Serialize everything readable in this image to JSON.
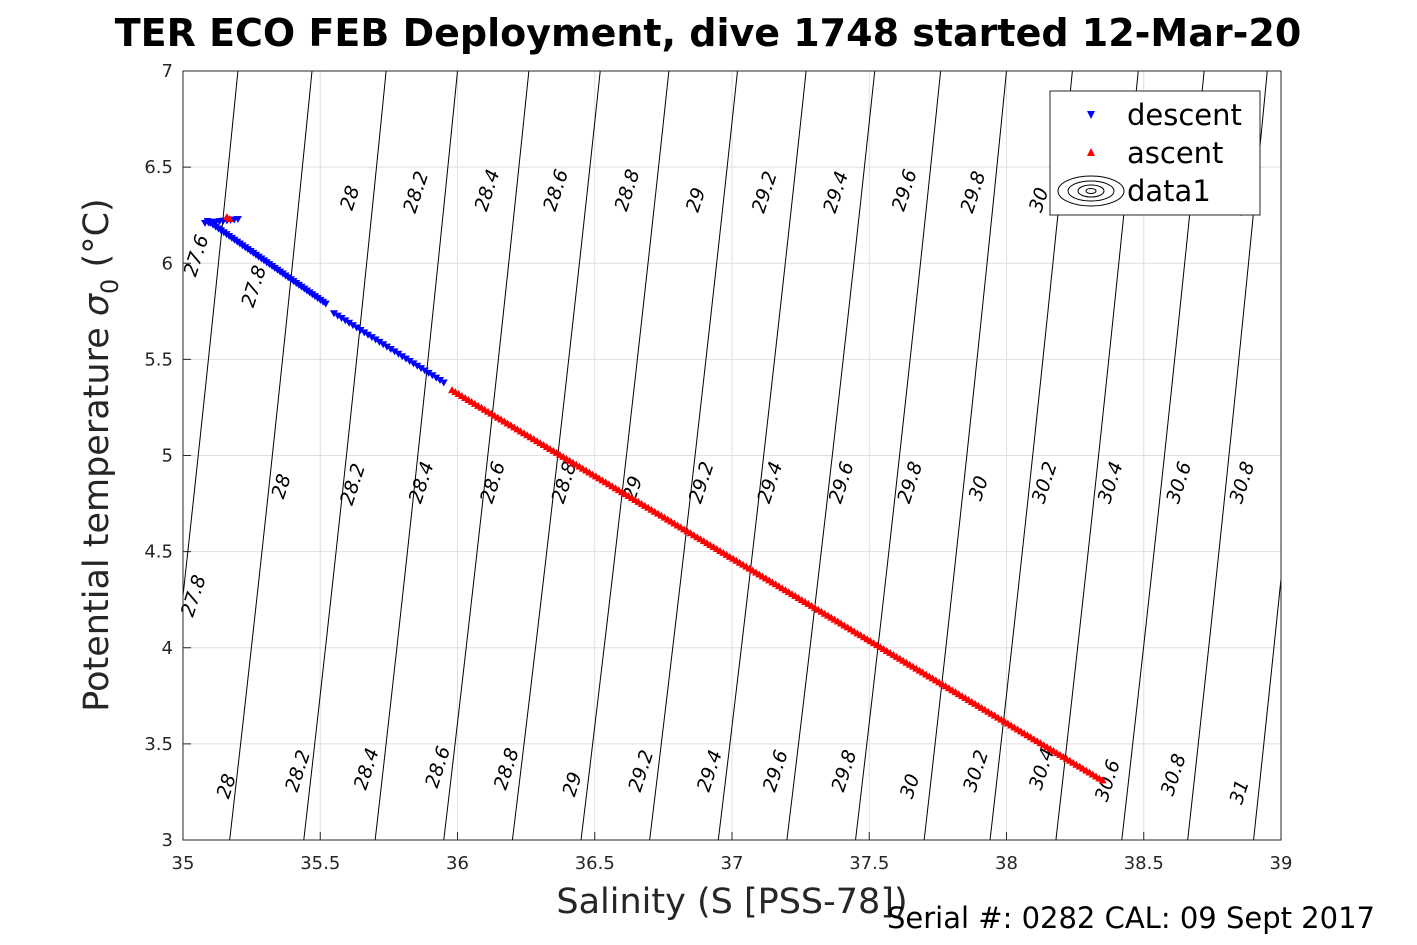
{
  "chart_data": {
    "type": "scatter",
    "title": "TER ECO FEB Deployment, dive 1748 started 12-Mar-20",
    "xlabel": "Salinity (S [PSS-78])",
    "ylabel_main": "Potential temperature ",
    "ylabel_sigma": "σ",
    "ylabel_sub": "0",
    "ylabel_unit": " (°C)",
    "footer": "Serial #: 0282  CAL: 09 Sept 2017",
    "xlim": [
      35,
      39
    ],
    "ylim": [
      3,
      7
    ],
    "x_ticks": [
      "35",
      "35.5",
      "36",
      "36.5",
      "37",
      "37.5",
      "38",
      "38.5",
      "39"
    ],
    "y_ticks": [
      "3",
      "3.5",
      "4",
      "4.5",
      "5",
      "5.5",
      "6",
      "6.5",
      "7"
    ],
    "grid": true,
    "legend": {
      "position": "top-right",
      "entries": [
        "descent",
        "ascent",
        "data1"
      ]
    },
    "contour_lines": [
      {
        "x_at_ymax": 35.2,
        "x_at_ymin": 34.9,
        "label": "27.6"
      },
      {
        "x_at_ymax": 35.47,
        "x_at_ymin": 35.17,
        "label": "27.8"
      },
      {
        "x_at_ymax": 35.74,
        "x_at_ymin": 35.44,
        "label": "28"
      },
      {
        "x_at_ymax": 36.0,
        "x_at_ymin": 35.7,
        "label": "28.2"
      },
      {
        "x_at_ymax": 36.26,
        "x_at_ymin": 35.95,
        "label": "28.4"
      },
      {
        "x_at_ymax": 36.52,
        "x_at_ymin": 36.2,
        "label": "28.6"
      },
      {
        "x_at_ymax": 36.77,
        "x_at_ymin": 36.45,
        "label": "28.8"
      },
      {
        "x_at_ymax": 37.02,
        "x_at_ymin": 36.7,
        "label": "29"
      },
      {
        "x_at_ymax": 37.27,
        "x_at_ymin": 36.95,
        "label": "29.2"
      },
      {
        "x_at_ymax": 37.52,
        "x_at_ymin": 37.2,
        "label": "29.4"
      },
      {
        "x_at_ymax": 37.76,
        "x_at_ymin": 37.45,
        "label": "29.6"
      },
      {
        "x_at_ymax": 38.0,
        "x_at_ymin": 37.7,
        "label": "29.8"
      },
      {
        "x_at_ymax": 38.24,
        "x_at_ymin": 37.94,
        "label": "30"
      },
      {
        "x_at_ymax": 38.48,
        "x_at_ymin": 38.18,
        "label": "30.2"
      },
      {
        "x_at_ymax": 38.72,
        "x_at_ymin": 38.42,
        "label": "30.4"
      },
      {
        "x_at_ymax": 38.95,
        "x_at_ymin": 38.66,
        "label": "30.6"
      },
      {
        "x_at_ymax": 39.18,
        "x_at_ymin": 38.9,
        "label": "30.8"
      },
      {
        "x_at_ymax": 39.41,
        "x_at_ymin": 39.13,
        "label": "31"
      }
    ],
    "contour_labels": [
      {
        "x": 35.07,
        "y": 6.03,
        "text": "27.6"
      },
      {
        "x": 35.28,
        "y": 5.87,
        "text": "27.8"
      },
      {
        "x": 35.63,
        "y": 6.33,
        "text": "28"
      },
      {
        "x": 35.87,
        "y": 6.36,
        "text": "28.2"
      },
      {
        "x": 36.13,
        "y": 6.37,
        "text": "28.4"
      },
      {
        "x": 36.38,
        "y": 6.37,
        "text": "28.6"
      },
      {
        "x": 36.64,
        "y": 6.37,
        "text": "28.8"
      },
      {
        "x": 36.89,
        "y": 6.32,
        "text": "29"
      },
      {
        "x": 37.14,
        "y": 6.36,
        "text": "29.2"
      },
      {
        "x": 37.4,
        "y": 6.36,
        "text": "29.4"
      },
      {
        "x": 37.65,
        "y": 6.37,
        "text": "29.6"
      },
      {
        "x": 37.9,
        "y": 6.36,
        "text": "29.8"
      },
      {
        "x": 38.14,
        "y": 6.32,
        "text": "30"
      },
      {
        "x": 38.88,
        "y": 6.35,
        "text": "30.8"
      },
      {
        "x": 35.38,
        "y": 4.83,
        "text": "28"
      },
      {
        "x": 35.64,
        "y": 4.84,
        "text": "28.2"
      },
      {
        "x": 35.89,
        "y": 4.85,
        "text": "28.4"
      },
      {
        "x": 36.15,
        "y": 4.85,
        "text": "28.6"
      },
      {
        "x": 36.41,
        "y": 4.85,
        "text": "28.8"
      },
      {
        "x": 36.66,
        "y": 4.82,
        "text": "29"
      },
      {
        "x": 36.91,
        "y": 4.85,
        "text": "29.2"
      },
      {
        "x": 37.16,
        "y": 4.85,
        "text": "29.4"
      },
      {
        "x": 37.42,
        "y": 4.85,
        "text": "29.6"
      },
      {
        "x": 37.67,
        "y": 4.85,
        "text": "29.8"
      },
      {
        "x": 37.92,
        "y": 4.82,
        "text": "30"
      },
      {
        "x": 38.16,
        "y": 4.85,
        "text": "30.2"
      },
      {
        "x": 38.4,
        "y": 4.85,
        "text": "30.4"
      },
      {
        "x": 38.65,
        "y": 4.85,
        "text": "30.6"
      },
      {
        "x": 38.88,
        "y": 4.85,
        "text": "30.8"
      },
      {
        "x": 35.06,
        "y": 4.26,
        "text": "27.8"
      },
      {
        "x": 35.18,
        "y": 3.27,
        "text": "28"
      },
      {
        "x": 35.44,
        "y": 3.35,
        "text": "28.2"
      },
      {
        "x": 35.69,
        "y": 3.36,
        "text": "28.4"
      },
      {
        "x": 35.95,
        "y": 3.37,
        "text": "28.6"
      },
      {
        "x": 36.2,
        "y": 3.36,
        "text": "28.8"
      },
      {
        "x": 36.44,
        "y": 3.28,
        "text": "29"
      },
      {
        "x": 36.69,
        "y": 3.35,
        "text": "29.2"
      },
      {
        "x": 36.94,
        "y": 3.35,
        "text": "29.4"
      },
      {
        "x": 37.18,
        "y": 3.35,
        "text": "29.6"
      },
      {
        "x": 37.43,
        "y": 3.35,
        "text": "29.8"
      },
      {
        "x": 37.67,
        "y": 3.27,
        "text": "30"
      },
      {
        "x": 37.91,
        "y": 3.35,
        "text": "30.2"
      },
      {
        "x": 38.15,
        "y": 3.36,
        "text": "30.4"
      },
      {
        "x": 38.39,
        "y": 3.3,
        "text": "30.6"
      },
      {
        "x": 38.63,
        "y": 3.33,
        "text": "30.8"
      },
      {
        "x": 38.87,
        "y": 3.24,
        "text": "31"
      }
    ],
    "series": [
      {
        "name": "descent",
        "color": "#0000ff",
        "marker": "triangle-down",
        "segments": [
          {
            "from": [
              35.08,
              6.21
            ],
            "to": [
              35.2,
              6.23
            ],
            "n": 10
          },
          {
            "from": [
              35.09,
              6.22
            ],
            "to": [
              35.52,
              5.79
            ],
            "n": 45
          },
          {
            "from": [
              35.55,
              5.74
            ],
            "to": [
              35.95,
              5.38
            ],
            "n": 30
          }
        ]
      },
      {
        "name": "ascent",
        "color": "#ff0000",
        "marker": "triangle-up",
        "segments": [
          {
            "from": [
              35.16,
              6.24
            ],
            "to": [
              35.17,
              6.23
            ],
            "n": 2
          },
          {
            "from": [
              35.98,
              5.34
            ],
            "to": [
              38.35,
              3.31
            ],
            "n": 200
          }
        ]
      }
    ]
  }
}
